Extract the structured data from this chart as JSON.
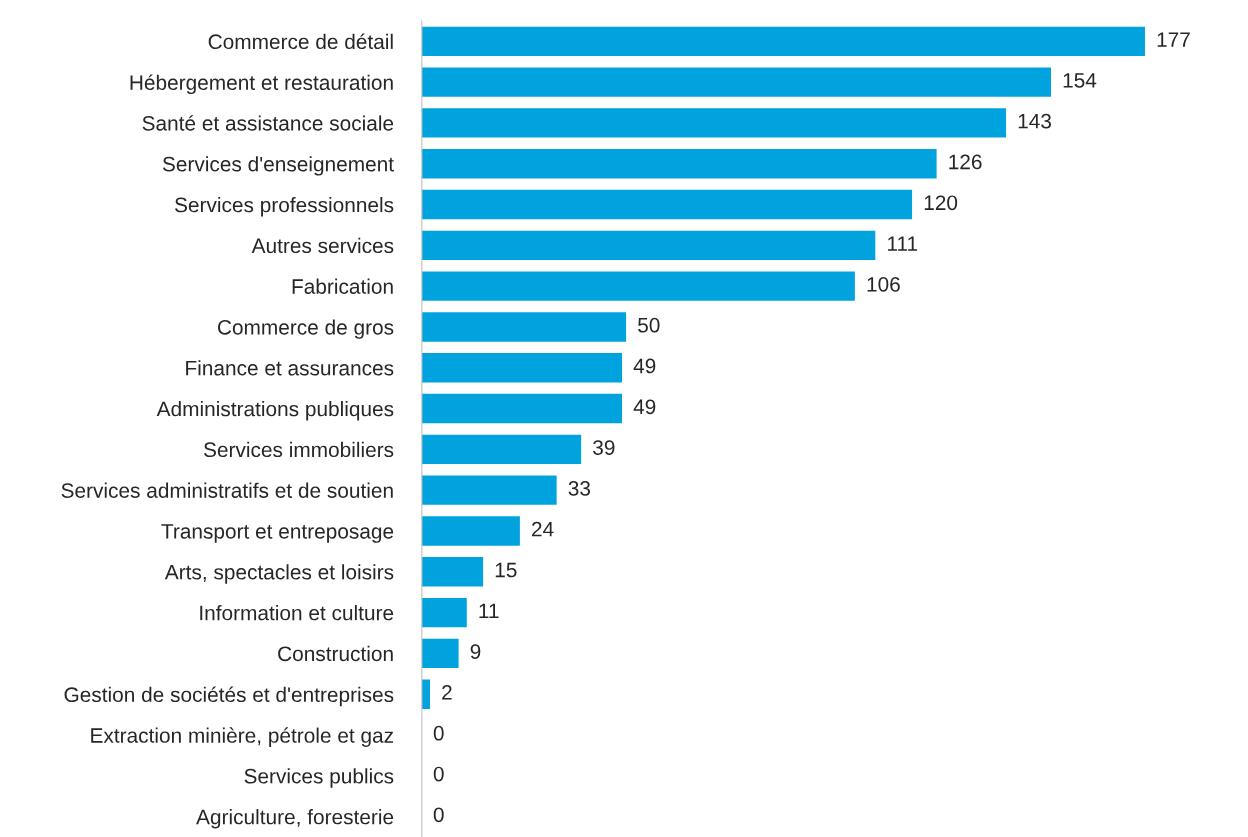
{
  "chart_data": {
    "type": "bar",
    "orientation": "horizontal",
    "data_labels": true,
    "tick_labels": "y",
    "grid": false,
    "legend": false,
    "color": "#00a3de",
    "categories": [
      "Commerce de détail",
      "Hébergement et restauration",
      "Santé et assistance sociale",
      "Services d'enseignement",
      "Services professionnels",
      "Autres services",
      "Fabrication",
      "Commerce de gros",
      "Finance et assurances",
      "Administrations publiques",
      "Services immobiliers",
      "Services administratifs et de soutien",
      "Transport et entreposage",
      "Arts, spectacles et loisirs",
      "Information et culture",
      "Construction",
      "Gestion de sociétés et d'entreprises",
      "Extraction minière, pétrole et gaz",
      "Services publics",
      "Agriculture, foresterie"
    ],
    "values": [
      177,
      154,
      143,
      126,
      120,
      111,
      106,
      50,
      49,
      49,
      39,
      33,
      24,
      15,
      11,
      9,
      2,
      0,
      0,
      0
    ]
  }
}
